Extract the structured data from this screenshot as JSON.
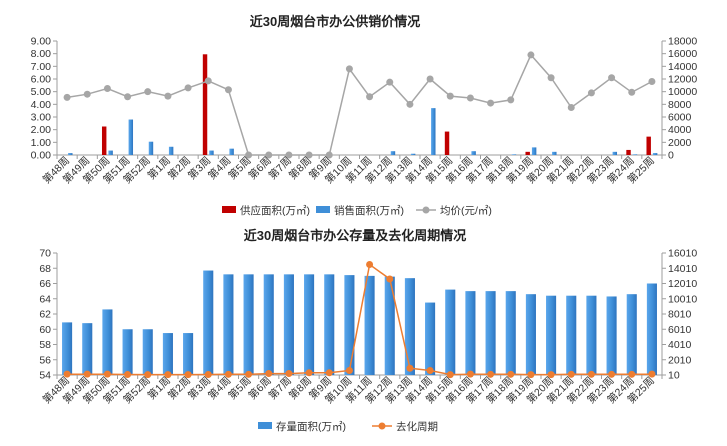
{
  "chart_data": [
    {
      "type": "bar",
      "title": "近30周烟台市办公供销价情况",
      "categories": [
        "第48周",
        "第49周",
        "第50周",
        "第51周",
        "第52周",
        "第1周",
        "第2周",
        "第3周",
        "第4周",
        "第5周",
        "第6周",
        "第7周",
        "第8周",
        "第9周",
        "第10周",
        "第11周",
        "第12周",
        "第13周",
        "第14周",
        "第15周",
        "第16周",
        "第17周",
        "第18周",
        "第19周",
        "第20周",
        "第21周",
        "第22周",
        "第23周",
        "第24周",
        "第25周"
      ],
      "y_left": {
        "min": 0,
        "max": 9,
        "step": 1,
        "ticks": [
          "0.00",
          "1.00",
          "2.00",
          "3.00",
          "4.00",
          "5.00",
          "6.00",
          "7.00",
          "8.00",
          "9.00"
        ]
      },
      "y_right": {
        "min": 0,
        "max": 18000,
        "step": 2000,
        "ticks": [
          "0",
          "2000",
          "4000",
          "6000",
          "8000",
          "10000",
          "12000",
          "14000",
          "16000",
          "18000"
        ]
      },
      "series": [
        {
          "name": "供应面积(万㎡)",
          "type": "bar",
          "axis": "left",
          "color": "#c00000",
          "values": [
            0,
            0,
            2.25,
            0,
            0,
            0,
            0,
            7.95,
            0,
            0,
            0,
            0,
            0,
            0,
            0,
            0,
            0,
            0,
            0,
            1.85,
            0,
            0,
            0,
            0.25,
            0,
            0,
            0,
            0,
            0.4,
            1.45
          ]
        },
        {
          "name": "销售面积(万㎡)",
          "type": "bar",
          "axis": "left",
          "color": "#3f8fd8",
          "values": [
            0.15,
            0,
            0.35,
            2.8,
            1.05,
            0.65,
            0,
            0.35,
            0.5,
            0,
            0,
            0,
            0,
            0,
            0,
            0,
            0.3,
            0.1,
            3.7,
            0,
            0.3,
            0,
            0.05,
            0.6,
            0.25,
            0,
            0,
            0.25,
            0.05,
            0.15
          ]
        },
        {
          "name": "均价(元/㎡)",
          "type": "line",
          "axis": "right",
          "color": "#a6a6a6",
          "values": [
            9100,
            9600,
            10500,
            9200,
            10000,
            9300,
            10600,
            11700,
            10300,
            0,
            0,
            0,
            0,
            0,
            13600,
            9200,
            11500,
            8000,
            12000,
            9300,
            9000,
            8200,
            8700,
            15800,
            12200,
            7500,
            9800,
            12200,
            9900,
            11600
          ]
        }
      ],
      "legend": "bottom"
    },
    {
      "type": "bar",
      "title": "近30周烟台市办公存量及去化周期情况",
      "categories": [
        "第48周",
        "第49周",
        "第50周",
        "第51周",
        "第52周",
        "第1周",
        "第2周",
        "第3周",
        "第4周",
        "第5周",
        "第6周",
        "第7周",
        "第8周",
        "第9周",
        "第10周",
        "第11周",
        "第12周",
        "第13周",
        "第14周",
        "第15周",
        "第16周",
        "第17周",
        "第18周",
        "第19周",
        "第20周",
        "第21周",
        "第22周",
        "第23周",
        "第24周",
        "第25周"
      ],
      "y_left": {
        "min": 54,
        "max": 70,
        "step": 2,
        "ticks": [
          "54",
          "56",
          "58",
          "60",
          "62",
          "64",
          "66",
          "68",
          "70"
        ]
      },
      "y_right": {
        "min": 10,
        "max": 16010,
        "step": 2000,
        "ticks": [
          "10",
          "2010",
          "4010",
          "6010",
          "8010",
          "10010",
          "12010",
          "14010",
          "16010"
        ]
      },
      "series": [
        {
          "name": "存量面积(万㎡)",
          "type": "bar",
          "axis": "left",
          "color": "#3f8fd8",
          "values": [
            60.9,
            60.8,
            62.6,
            60.0,
            60.0,
            59.5,
            59.5,
            67.7,
            67.2,
            67.2,
            67.2,
            67.2,
            67.2,
            67.2,
            67.1,
            67.0,
            66.9,
            66.7,
            63.5,
            65.2,
            65.0,
            65.0,
            65.0,
            64.6,
            64.4,
            64.4,
            64.4,
            64.3,
            64.6,
            66.0
          ]
        },
        {
          "name": "去化周期",
          "type": "line",
          "axis": "right",
          "color": "#ed7d31",
          "values": [
            120,
            120,
            120,
            80,
            60,
            60,
            60,
            80,
            100,
            100,
            200,
            200,
            300,
            300,
            600,
            14500,
            12600,
            900,
            600,
            60,
            120,
            100,
            100,
            60,
            60,
            100,
            100,
            100,
            100,
            120
          ]
        }
      ],
      "legend": "bottom"
    }
  ]
}
